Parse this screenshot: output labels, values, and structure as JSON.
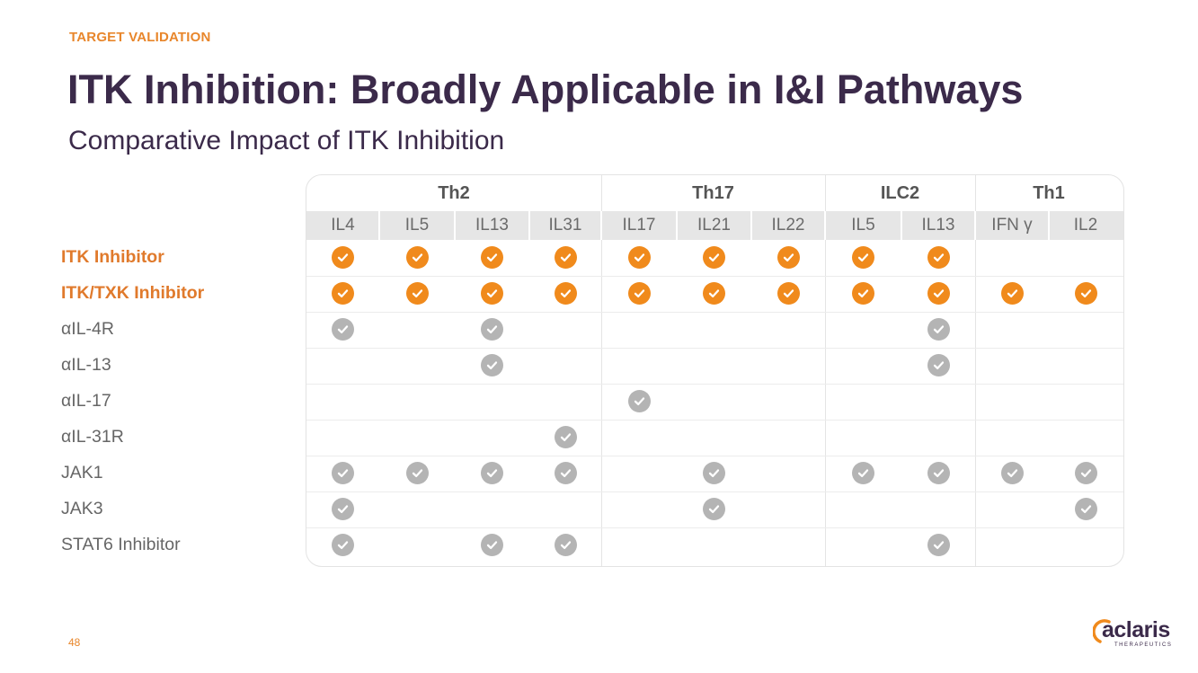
{
  "slide": {
    "kicker": "TARGET VALIDATION",
    "title": "ITK Inhibition: Broadly Applicable in I&I Pathways",
    "subtitle": "Comparative Impact of ITK Inhibition",
    "page_number": "48"
  },
  "colors": {
    "kicker": "#e8862b",
    "title": "#3b2a4a",
    "subtitle": "#3b2a4a",
    "highlight_label": "#e07a2c",
    "normal_label": "#666666",
    "check_orange": "#f08a1c",
    "check_gray": "#b4b4b4",
    "logo_word": "#3b2a4a",
    "logo_arc": "#f08a1c"
  },
  "table": {
    "groups": [
      {
        "label": "Th2",
        "span": 4
      },
      {
        "label": "Th17",
        "span": 3
      },
      {
        "label": "ILC2",
        "span": 2
      },
      {
        "label": "Th1",
        "span": 2
      }
    ],
    "columns": [
      "IL4",
      "IL5",
      "IL13",
      "IL31",
      "IL17",
      "IL21",
      "IL22",
      "IL5",
      "IL13",
      "IFN γ",
      "IL2"
    ],
    "rows": [
      {
        "label": "ITK Inhibitor",
        "highlight": true,
        "checks": [
          "o",
          "o",
          "o",
          "o",
          "o",
          "o",
          "o",
          "o",
          "o",
          "",
          ""
        ]
      },
      {
        "label": "ITK/TXK Inhibitor",
        "highlight": true,
        "checks": [
          "o",
          "o",
          "o",
          "o",
          "o",
          "o",
          "o",
          "o",
          "o",
          "o",
          "o"
        ]
      },
      {
        "label": "αIL-4R",
        "highlight": false,
        "checks": [
          "g",
          "",
          "g",
          "",
          "",
          "",
          "",
          "",
          "g",
          "",
          ""
        ]
      },
      {
        "label": "αIL-13",
        "highlight": false,
        "checks": [
          "",
          "",
          "g",
          "",
          "",
          "",
          "",
          "",
          "g",
          "",
          ""
        ]
      },
      {
        "label": "αIL-17",
        "highlight": false,
        "checks": [
          "",
          "",
          "",
          "",
          "g",
          "",
          "",
          "",
          "",
          "",
          ""
        ]
      },
      {
        "label": "αIL-31R",
        "highlight": false,
        "checks": [
          "",
          "",
          "",
          "g",
          "",
          "",
          "",
          "",
          "",
          "",
          ""
        ]
      },
      {
        "label": "JAK1",
        "highlight": false,
        "checks": [
          "g",
          "g",
          "g",
          "g",
          "",
          "g",
          "",
          "g",
          "g",
          "g",
          "g"
        ]
      },
      {
        "label": "JAK3",
        "highlight": false,
        "checks": [
          "g",
          "",
          "",
          "",
          "",
          "g",
          "",
          "",
          "",
          "",
          "g"
        ]
      },
      {
        "label": "STAT6 Inhibitor",
        "highlight": false,
        "checks": [
          "g",
          "",
          "g",
          "g",
          "",
          "",
          "",
          "",
          "g",
          "",
          ""
        ]
      }
    ]
  },
  "logo": {
    "word": "aclaris",
    "tagline": "THERAPEUTICS",
    "icon": "aclaris-arc-logo"
  }
}
